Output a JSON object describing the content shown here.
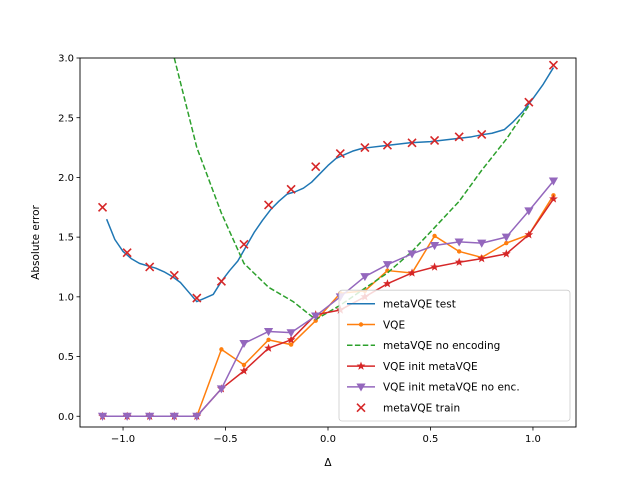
{
  "chart_data": {
    "type": "line",
    "title": "",
    "xlabel": "Δ",
    "ylabel": "Absolute error",
    "xlim": [
      -1.21,
      1.21
    ],
    "ylim": [
      -0.09,
      3.0
    ],
    "x_ticks": [
      -1.0,
      -0.5,
      0.0,
      0.5,
      1.0
    ],
    "x_tick_labels": [
      "−1.0",
      "−0.5",
      "0.0",
      "0.5",
      "1.0"
    ],
    "y_ticks": [
      0.0,
      0.5,
      1.0,
      1.5,
      2.0,
      2.5,
      3.0
    ],
    "y_tick_labels": [
      "0.0",
      "0.5",
      "1.0",
      "1.5",
      "2.0",
      "2.5",
      "3.0"
    ],
    "grid": false,
    "legend_position": "lower-right",
    "series": [
      {
        "name": "metaVQE test",
        "color": "#1f77b4",
        "marker": "none",
        "style": "solid",
        "x": [
          -1.08,
          -1.04,
          -1.0,
          -0.96,
          -0.92,
          -0.88,
          -0.84,
          -0.8,
          -0.76,
          -0.72,
          -0.68,
          -0.64,
          -0.6,
          -0.56,
          -0.52,
          -0.48,
          -0.44,
          -0.4,
          -0.36,
          -0.32,
          -0.28,
          -0.24,
          -0.2,
          -0.16,
          -0.12,
          -0.08,
          -0.04,
          0.0,
          0.04,
          0.08,
          0.12,
          0.16,
          0.2,
          0.3,
          0.4,
          0.5,
          0.6,
          0.7,
          0.76,
          0.8,
          0.86,
          0.9,
          0.95,
          1.0,
          1.05,
          1.1
        ],
        "y": [
          1.65,
          1.48,
          1.38,
          1.32,
          1.28,
          1.26,
          1.24,
          1.21,
          1.17,
          1.12,
          1.04,
          0.96,
          0.99,
          1.02,
          1.13,
          1.22,
          1.3,
          1.42,
          1.54,
          1.64,
          1.73,
          1.8,
          1.86,
          1.88,
          1.91,
          1.96,
          2.03,
          2.1,
          2.16,
          2.19,
          2.22,
          2.24,
          2.25,
          2.27,
          2.29,
          2.3,
          2.32,
          2.34,
          2.36,
          2.37,
          2.4,
          2.46,
          2.55,
          2.66,
          2.78,
          2.92
        ]
      },
      {
        "name": "VQE",
        "color": "#ff7f0e",
        "marker": "dot",
        "style": "solid",
        "x": [
          -1.1,
          -0.98,
          -0.87,
          -0.75,
          -0.64,
          -0.52,
          -0.41,
          -0.29,
          -0.18,
          -0.06,
          0.06,
          0.18,
          0.29,
          0.41,
          0.52,
          0.64,
          0.75,
          0.87,
          0.98,
          1.1
        ],
        "y": [
          0.0,
          0.0,
          0.0,
          0.0,
          0.0,
          0.56,
          0.43,
          0.64,
          0.6,
          0.8,
          1.03,
          1.05,
          1.22,
          1.2,
          1.51,
          1.38,
          1.33,
          1.45,
          1.52,
          1.85
        ]
      },
      {
        "name": "metaVQE no encoding",
        "color": "#2ca02c",
        "marker": "none",
        "style": "dashed",
        "x": [
          -0.75,
          -0.64,
          -0.52,
          -0.41,
          -0.29,
          -0.17,
          -0.06,
          0.06,
          0.17,
          0.29,
          0.41,
          0.52,
          0.64,
          0.75,
          0.87,
          0.98
        ],
        "y": [
          3.0,
          2.25,
          1.7,
          1.28,
          1.08,
          0.96,
          0.81,
          0.93,
          1.06,
          1.2,
          1.38,
          1.58,
          1.8,
          2.06,
          2.32,
          2.6
        ]
      },
      {
        "name": "VQE init metaVQE",
        "color": "#d62728",
        "marker": "star",
        "style": "solid",
        "x": [
          -1.1,
          -0.98,
          -0.87,
          -0.75,
          -0.64,
          -0.52,
          -0.41,
          -0.29,
          -0.18,
          -0.06,
          0.06,
          0.18,
          0.29,
          0.41,
          0.52,
          0.64,
          0.75,
          0.87,
          0.98,
          1.1
        ],
        "y": [
          0.0,
          0.0,
          0.0,
          0.0,
          0.0,
          0.23,
          0.38,
          0.57,
          0.64,
          0.85,
          0.89,
          1.0,
          1.11,
          1.2,
          1.25,
          1.29,
          1.32,
          1.36,
          1.52,
          1.82
        ]
      },
      {
        "name": "VQE init metaVQE no enc.",
        "color": "#9467bd",
        "marker": "triangle_down",
        "style": "solid",
        "x": [
          -1.1,
          -0.98,
          -0.87,
          -0.75,
          -0.64,
          -0.52,
          -0.41,
          -0.29,
          -0.18,
          -0.06,
          0.06,
          0.18,
          0.29,
          0.41,
          0.52,
          0.64,
          0.75,
          0.87,
          0.98,
          1.1
        ],
        "y": [
          0.0,
          0.0,
          0.0,
          0.0,
          0.0,
          0.23,
          0.61,
          0.71,
          0.7,
          0.84,
          1.0,
          1.17,
          1.27,
          1.36,
          1.43,
          1.46,
          1.45,
          1.5,
          1.72,
          1.97
        ]
      },
      {
        "name": "metaVQE train",
        "color": "#d62728",
        "marker": "x",
        "style": "none",
        "x": [
          -1.1,
          -0.98,
          -0.87,
          -0.75,
          -0.64,
          -0.52,
          -0.41,
          -0.29,
          -0.18,
          -0.06,
          0.06,
          0.18,
          0.29,
          0.41,
          0.52,
          0.64,
          0.75,
          0.98,
          1.1
        ],
        "y": [
          1.75,
          1.37,
          1.25,
          1.18,
          0.99,
          1.13,
          1.44,
          1.77,
          1.9,
          2.09,
          2.2,
          2.25,
          2.27,
          2.29,
          2.31,
          2.34,
          2.36,
          2.63,
          2.94
        ]
      }
    ]
  }
}
